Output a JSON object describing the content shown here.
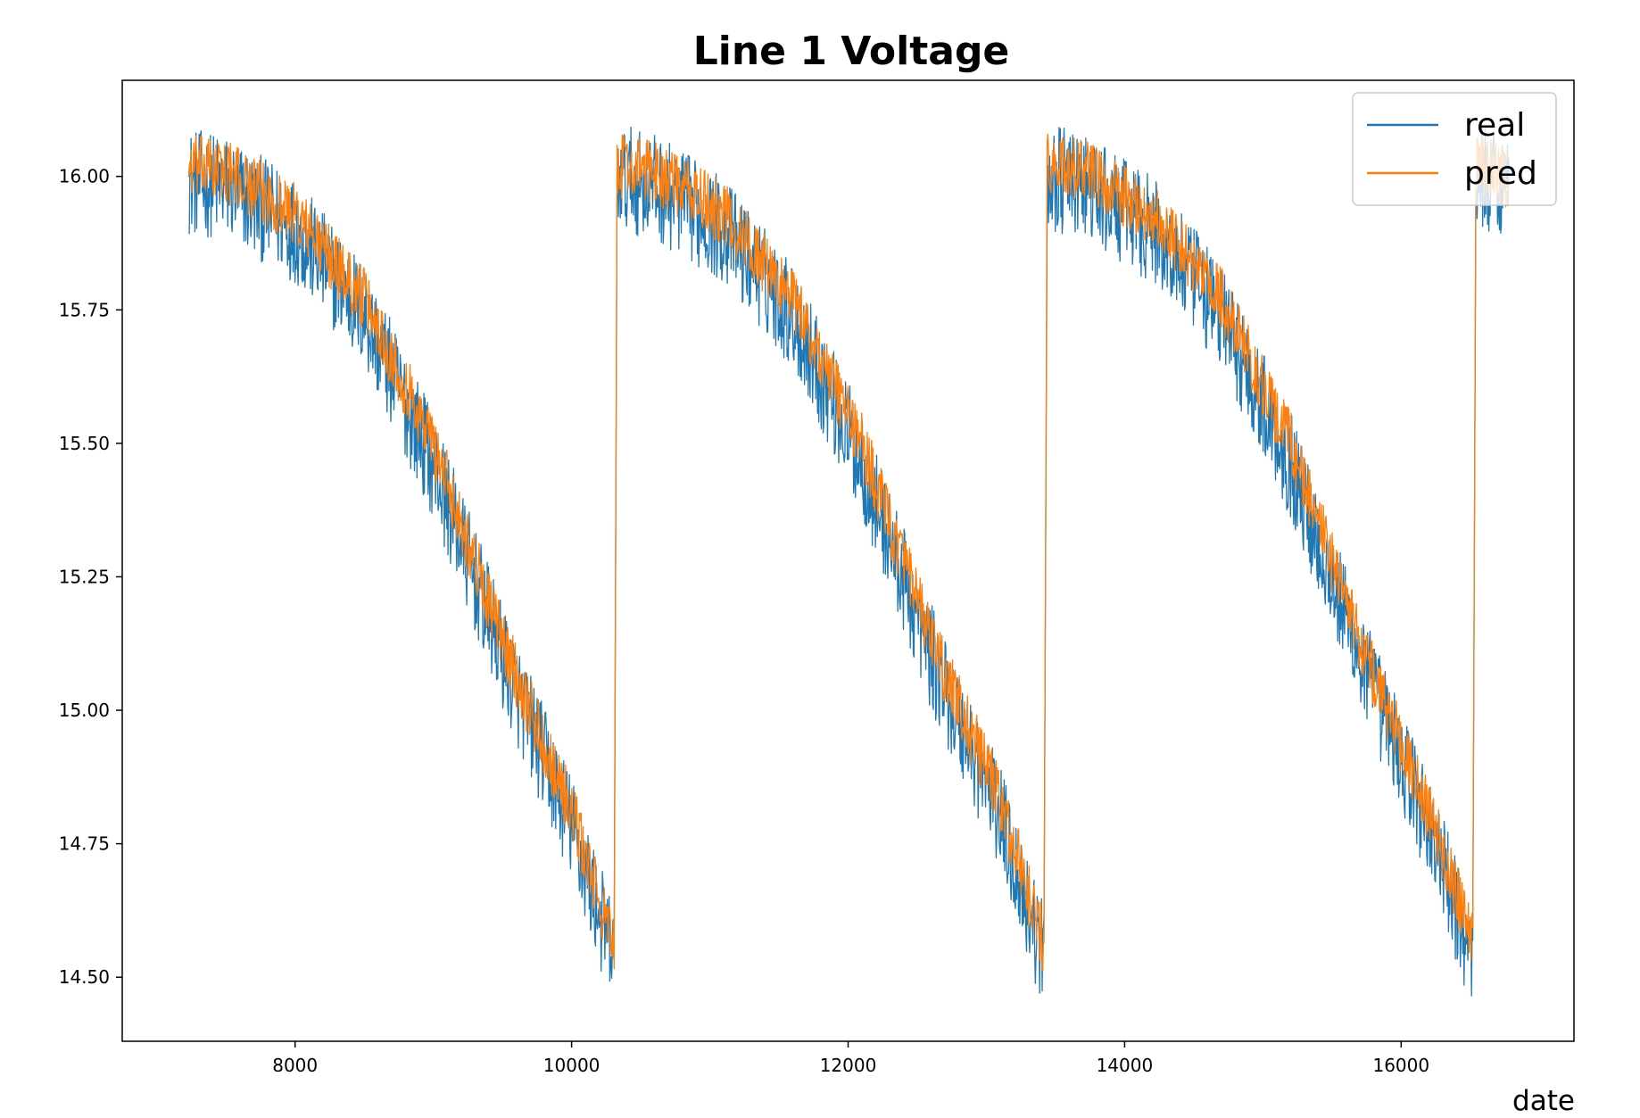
{
  "chart_data": {
    "type": "line",
    "title": "Line 1 Voltage",
    "xlabel": "date",
    "ylabel": "",
    "xlim": [
      6750,
      17250
    ],
    "ylim": [
      14.38,
      16.18
    ],
    "xticks": [
      8000,
      10000,
      12000,
      14000,
      16000
    ],
    "xtick_labels": [
      "8000",
      "10000",
      "12000",
      "14000",
      "16000"
    ],
    "yticks": [
      14.5,
      14.75,
      15.0,
      15.25,
      15.5,
      15.75,
      16.0
    ],
    "ytick_labels": [
      "14.50",
      "14.75",
      "15.00",
      "15.25",
      "15.50",
      "15.75",
      "16.00"
    ],
    "grid": false,
    "legend_position": "top-right",
    "cycles": [
      {
        "x_start": 7230,
        "x_end": 10310
      },
      {
        "x_start": 10330,
        "x_end": 13420
      },
      {
        "x_start": 13440,
        "x_end": 16520
      },
      {
        "x_start": 16540,
        "x_end": 16780
      }
    ],
    "series": [
      {
        "name": "real",
        "color": "#1f77b4",
        "x": [
          7230,
          7500,
          8000,
          8500,
          9000,
          9500,
          10000,
          10310,
          10330,
          10600,
          11100,
          11600,
          12100,
          12600,
          13100,
          13420,
          13440,
          13700,
          14200,
          14700,
          15200,
          15700,
          16200,
          16520,
          16540,
          16780
        ],
        "values": [
          15.99,
          15.98,
          15.9,
          15.74,
          15.46,
          15.1,
          14.78,
          14.53,
          16.0,
          15.98,
          15.9,
          15.74,
          15.46,
          15.1,
          14.8,
          14.53,
          16.0,
          15.98,
          15.9,
          15.74,
          15.46,
          15.1,
          14.78,
          14.53,
          16.0,
          15.99
        ],
        "noise_amplitude": 0.1
      },
      {
        "name": "pred",
        "color": "#ff7f0e",
        "x": [
          7230,
          7500,
          8000,
          8500,
          9000,
          9500,
          10000,
          10310,
          10330,
          10600,
          11100,
          11600,
          12100,
          12600,
          13100,
          13420,
          13440,
          13700,
          14200,
          14700,
          15200,
          15700,
          16200,
          16520,
          16540,
          16780
        ],
        "values": [
          16.02,
          16.01,
          15.93,
          15.77,
          15.5,
          15.13,
          14.81,
          14.55,
          16.02,
          16.01,
          15.93,
          15.77,
          15.5,
          15.13,
          14.83,
          14.56,
          16.02,
          16.01,
          15.93,
          15.77,
          15.5,
          15.13,
          14.81,
          14.56,
          16.02,
          16.0
        ],
        "noise_amplitude": 0.06
      }
    ]
  }
}
